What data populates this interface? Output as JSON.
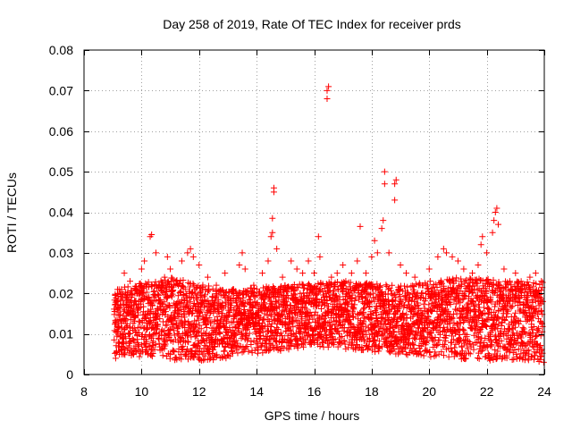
{
  "chart_data": {
    "type": "scatter",
    "title": "Day 258 of 2019, Rate Of TEC Index for receiver prds",
    "xlabel": "GPS time / hours",
    "ylabel": "ROTI / TECUs",
    "xlim": [
      8,
      24
    ],
    "ylim": [
      0,
      0.08
    ],
    "x_ticks": [
      8,
      10,
      12,
      14,
      16,
      18,
      20,
      22,
      24
    ],
    "y_ticks": [
      0,
      0.01,
      0.02,
      0.03,
      0.04,
      0.05,
      0.06,
      0.07,
      0.08
    ],
    "x_tick_labels": [
      "8",
      "10",
      "12",
      "14",
      "16",
      "18",
      "20",
      "22",
      "24"
    ],
    "y_tick_labels": [
      "0",
      "0.01",
      "0.02",
      "0.03",
      "0.04",
      "0.05",
      "0.06",
      "0.07",
      "0.08"
    ],
    "grid": true,
    "marker": "+",
    "color": "#ff0000",
    "series": [
      {
        "name": "ROTI",
        "points": [
          [
            9.1,
            0.004
          ],
          [
            9.1,
            0.013
          ],
          [
            9.15,
            0.018
          ],
          [
            9.2,
            0.008
          ],
          [
            9.3,
            0.021
          ],
          [
            9.4,
            0.025
          ],
          [
            9.5,
            0.012
          ],
          [
            9.6,
            0.023
          ],
          [
            9.8,
            0.007
          ],
          [
            9.9,
            0.018
          ],
          [
            10.0,
            0.026
          ],
          [
            10.0,
            0.022
          ],
          [
            10.1,
            0.028
          ],
          [
            10.3,
            0.034
          ],
          [
            10.35,
            0.0345
          ],
          [
            10.4,
            0.015
          ],
          [
            10.5,
            0.03
          ],
          [
            10.6,
            0.022
          ],
          [
            10.8,
            0.024
          ],
          [
            10.9,
            0.029
          ],
          [
            11.0,
            0.026
          ],
          [
            11.2,
            0.023
          ],
          [
            11.4,
            0.028
          ],
          [
            11.6,
            0.03
          ],
          [
            11.7,
            0.031
          ],
          [
            11.8,
            0.029
          ],
          [
            12.0,
            0.027
          ],
          [
            12.3,
            0.024
          ],
          [
            12.6,
            0.022
          ],
          [
            12.9,
            0.025
          ],
          [
            13.2,
            0.021
          ],
          [
            13.4,
            0.027
          ],
          [
            13.5,
            0.03
          ],
          [
            13.6,
            0.026
          ],
          [
            13.9,
            0.022
          ],
          [
            14.2,
            0.025
          ],
          [
            14.4,
            0.028
          ],
          [
            14.5,
            0.034
          ],
          [
            14.55,
            0.0385
          ],
          [
            14.6,
            0.045
          ],
          [
            14.6,
            0.046
          ],
          [
            14.55,
            0.035
          ],
          [
            14.7,
            0.031
          ],
          [
            14.9,
            0.024
          ],
          [
            15.2,
            0.028
          ],
          [
            15.4,
            0.026
          ],
          [
            15.6,
            0.025
          ],
          [
            15.8,
            0.028
          ],
          [
            16.0,
            0.025
          ],
          [
            16.15,
            0.034
          ],
          [
            16.2,
            0.029
          ],
          [
            16.45,
            0.068
          ],
          [
            16.45,
            0.07
          ],
          [
            16.5,
            0.071
          ],
          [
            16.6,
            0.024
          ],
          [
            16.8,
            0.025
          ],
          [
            17.0,
            0.027
          ],
          [
            17.1,
            0.023
          ],
          [
            17.3,
            0.025
          ],
          [
            17.5,
            0.028
          ],
          [
            17.6,
            0.0365
          ],
          [
            17.8,
            0.025
          ],
          [
            18.0,
            0.029
          ],
          [
            18.1,
            0.033
          ],
          [
            18.2,
            0.03
          ],
          [
            18.35,
            0.036
          ],
          [
            18.4,
            0.038
          ],
          [
            18.45,
            0.047
          ],
          [
            18.45,
            0.05
          ],
          [
            18.6,
            0.03
          ],
          [
            18.8,
            0.043
          ],
          [
            18.8,
            0.047
          ],
          [
            18.85,
            0.048
          ],
          [
            19.0,
            0.027
          ],
          [
            19.2,
            0.025
          ],
          [
            19.5,
            0.024
          ],
          [
            19.8,
            0.022
          ],
          [
            20.0,
            0.026
          ],
          [
            20.3,
            0.029
          ],
          [
            20.5,
            0.031
          ],
          [
            20.6,
            0.03
          ],
          [
            20.8,
            0.029
          ],
          [
            21.0,
            0.028
          ],
          [
            21.2,
            0.026
          ],
          [
            21.5,
            0.025
          ],
          [
            21.7,
            0.027
          ],
          [
            21.8,
            0.032
          ],
          [
            21.85,
            0.034
          ],
          [
            22.0,
            0.03
          ],
          [
            22.2,
            0.035
          ],
          [
            22.25,
            0.038
          ],
          [
            22.3,
            0.04
          ],
          [
            22.35,
            0.041
          ],
          [
            22.4,
            0.037
          ],
          [
            22.6,
            0.026
          ],
          [
            22.8,
            0.023
          ],
          [
            23.0,
            0.025
          ],
          [
            23.3,
            0.022
          ],
          [
            23.5,
            0.024
          ],
          [
            23.7,
            0.025
          ],
          [
            23.9,
            0.023
          ],
          [
            23.95,
            0.018
          ],
          [
            23.98,
            0.003
          ]
        ],
        "band": {
          "x_range": [
            9.05,
            23.95
          ],
          "lower_envelope": [
            [
              9.0,
              0.005
            ],
            [
              12.0,
              0.003
            ],
            [
              16.0,
              0.007
            ],
            [
              20.0,
              0.004
            ],
            [
              24.0,
              0.003
            ]
          ],
          "upper_envelope": [
            [
              9.0,
              0.021
            ],
            [
              11.0,
              0.024
            ],
            [
              13.0,
              0.021
            ],
            [
              15.0,
              0.022
            ],
            [
              17.0,
              0.023
            ],
            [
              19.0,
              0.022
            ],
            [
              21.0,
              0.024
            ],
            [
              23.0,
              0.023
            ],
            [
              24.0,
              0.023
            ]
          ]
        }
      }
    ]
  }
}
